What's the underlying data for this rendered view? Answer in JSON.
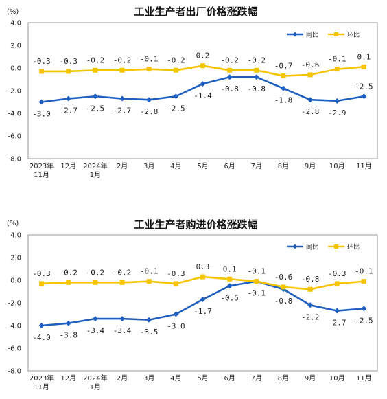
{
  "chart_data": [
    {
      "type": "line",
      "title": "工业生产者出厂价格涨跌幅",
      "unit_label": "(%)",
      "categories": [
        "2023年11月",
        "12月",
        "2024年1月",
        "2月",
        "3月",
        "4月",
        "5月",
        "6月",
        "7月",
        "8月",
        "9月",
        "10月",
        "11月"
      ],
      "category_lines": [
        [
          "2023年",
          "11月"
        ],
        [
          "12月"
        ],
        [
          "2024年",
          "1月"
        ],
        [
          "2月"
        ],
        [
          "3月"
        ],
        [
          "4月"
        ],
        [
          "5月"
        ],
        [
          "6月"
        ],
        [
          "7月"
        ],
        [
          "8月"
        ],
        [
          "9月"
        ],
        [
          "10月"
        ],
        [
          "11月"
        ]
      ],
      "ylim": [
        -8.0,
        4.0
      ],
      "yticks": [
        "4.0",
        "2.0",
        "0.0",
        "-2.0",
        "-4.0",
        "-6.0",
        "-8.0"
      ],
      "grid": false,
      "legend_position": "top-right",
      "series": [
        {
          "name": "同比",
          "color": "#1F5FBF",
          "marker": "diamond",
          "values": [
            -3.0,
            -2.7,
            -2.5,
            -2.7,
            -2.8,
            -2.5,
            -1.4,
            -0.8,
            -0.8,
            -1.8,
            -2.8,
            -2.9,
            -2.5
          ],
          "labels": [
            "-3.0",
            "-2.7",
            "-2.5",
            "-2.7",
            "-2.8",
            "-2.5",
            "-1.4",
            "-0.8",
            "-0.8",
            "-1.8",
            "-2.8",
            "-2.9",
            "-2.5"
          ],
          "label_pos": [
            "below",
            "below",
            "below",
            "below",
            "below",
            "below",
            "below",
            "below",
            "below",
            "below",
            "below",
            "below",
            "above"
          ]
        },
        {
          "name": "环比",
          "color": "#F5C400",
          "marker": "square",
          "values": [
            -0.3,
            -0.3,
            -0.2,
            -0.2,
            -0.1,
            -0.2,
            0.2,
            -0.2,
            -0.2,
            -0.7,
            -0.6,
            -0.1,
            0.1
          ],
          "labels": [
            "-0.3",
            "-0.3",
            "-0.2",
            "-0.2",
            "-0.1",
            "-0.2",
            "0.2",
            "-0.2",
            "-0.2",
            "-0.7",
            "-0.6",
            "-0.1",
            "0.1"
          ],
          "label_pos": [
            "above",
            "above",
            "above",
            "above",
            "above",
            "above",
            "above",
            "above",
            "above",
            "above",
            "above",
            "above",
            "above"
          ]
        }
      ]
    },
    {
      "type": "line",
      "title": "工业生产者购进价格涨跌幅",
      "unit_label": "(%)",
      "categories": [
        "2023年11月",
        "12月",
        "2024年1月",
        "2月",
        "3月",
        "4月",
        "5月",
        "6月",
        "7月",
        "8月",
        "9月",
        "10月",
        "11月"
      ],
      "category_lines": [
        [
          "2023年",
          "11月"
        ],
        [
          "12月"
        ],
        [
          "2024年",
          "1月"
        ],
        [
          "2月"
        ],
        [
          "3月"
        ],
        [
          "4月"
        ],
        [
          "5月"
        ],
        [
          "6月"
        ],
        [
          "7月"
        ],
        [
          "8月"
        ],
        [
          "9月"
        ],
        [
          "10月"
        ],
        [
          "11月"
        ]
      ],
      "ylim": [
        -8.0,
        4.0
      ],
      "yticks": [
        "4.0",
        "2.0",
        "0.0",
        "-2.0",
        "-4.0",
        "-6.0",
        "-8.0"
      ],
      "grid": false,
      "legend_position": "top-right",
      "series": [
        {
          "name": "同比",
          "color": "#1F5FBF",
          "marker": "diamond",
          "values": [
            -4.0,
            -3.8,
            -3.4,
            -3.4,
            -3.5,
            -3.0,
            -1.7,
            -0.5,
            -0.1,
            -0.8,
            -2.2,
            -2.7,
            -2.5
          ],
          "labels": [
            "-4.0",
            "-3.8",
            "-3.4",
            "-3.4",
            "-3.5",
            "-3.0",
            "-1.7",
            "-0.5",
            "-0.1",
            "-0.8",
            "-2.2",
            "-2.7",
            "-2.5"
          ],
          "label_pos": [
            "below",
            "below",
            "below",
            "below",
            "below",
            "below",
            "below",
            "below",
            "below",
            "below",
            "below",
            "below",
            "below"
          ]
        },
        {
          "name": "环比",
          "color": "#F5C400",
          "marker": "square",
          "values": [
            -0.3,
            -0.2,
            -0.2,
            -0.2,
            -0.1,
            -0.3,
            0.3,
            0.1,
            -0.1,
            -0.6,
            -0.8,
            -0.3,
            -0.1
          ],
          "labels": [
            "-0.3",
            "-0.2",
            "-0.2",
            "-0.2",
            "-0.1",
            "-0.3",
            "0.3",
            "0.1",
            "-0.1",
            "-0.6",
            "-0.8",
            "-0.3",
            "-0.1"
          ],
          "label_pos": [
            "above",
            "above",
            "above",
            "above",
            "above",
            "above",
            "above",
            "above",
            "above",
            "above",
            "above",
            "above",
            "above"
          ]
        }
      ]
    }
  ]
}
